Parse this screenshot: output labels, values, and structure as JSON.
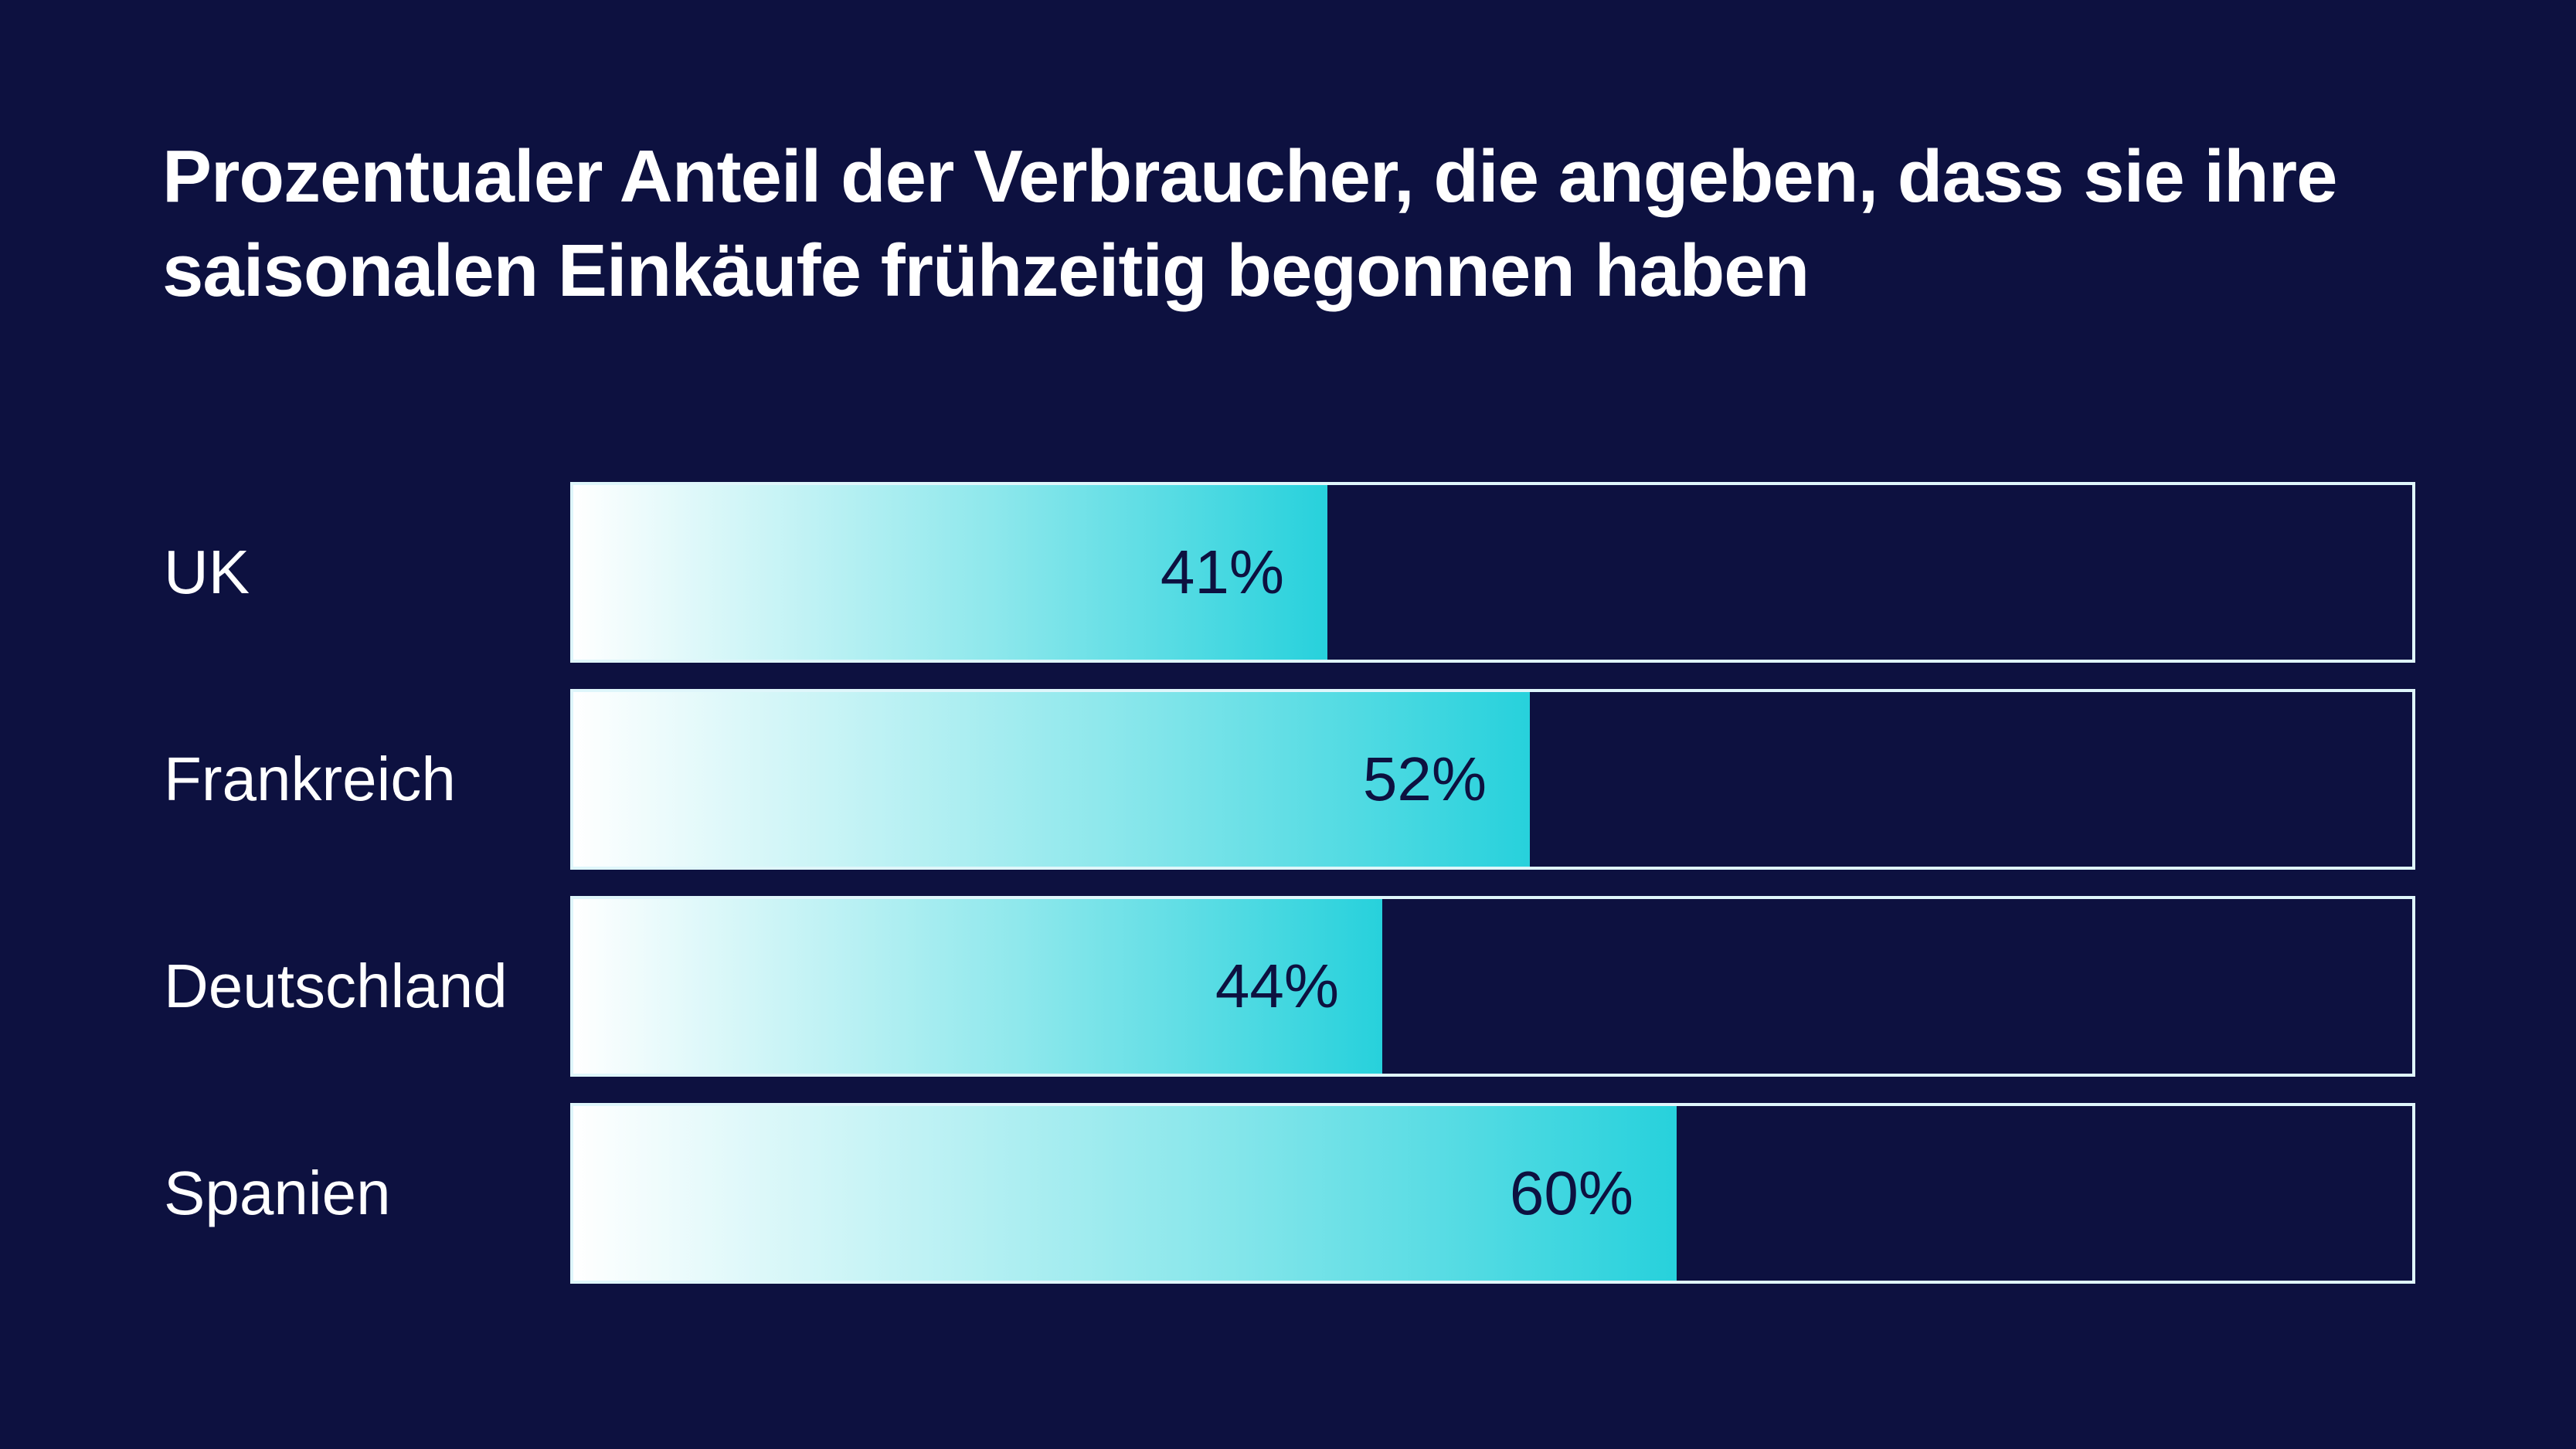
{
  "chart_data": {
    "type": "bar",
    "orientation": "horizontal",
    "title": "Prozentualer Anteil der Verbraucher, die angeben, dass sie ihre saisonalen Einkäufe frühzeitig begonnen haben",
    "categories": [
      "UK",
      "Frankreich",
      "Deutschland",
      "Spanien"
    ],
    "values": [
      41,
      52,
      44,
      60
    ],
    "value_labels": [
      "41%",
      "52%",
      "44%",
      "60%"
    ],
    "xlim": [
      0,
      100
    ],
    "grid": false,
    "legend": "none",
    "colors": {
      "background": "#0d1140",
      "bar_start": "#ffffff",
      "bar_end": "#27d1dc",
      "track_border": "#dff6fb",
      "text": "#ffffff",
      "value_text": "#0d1140"
    }
  }
}
